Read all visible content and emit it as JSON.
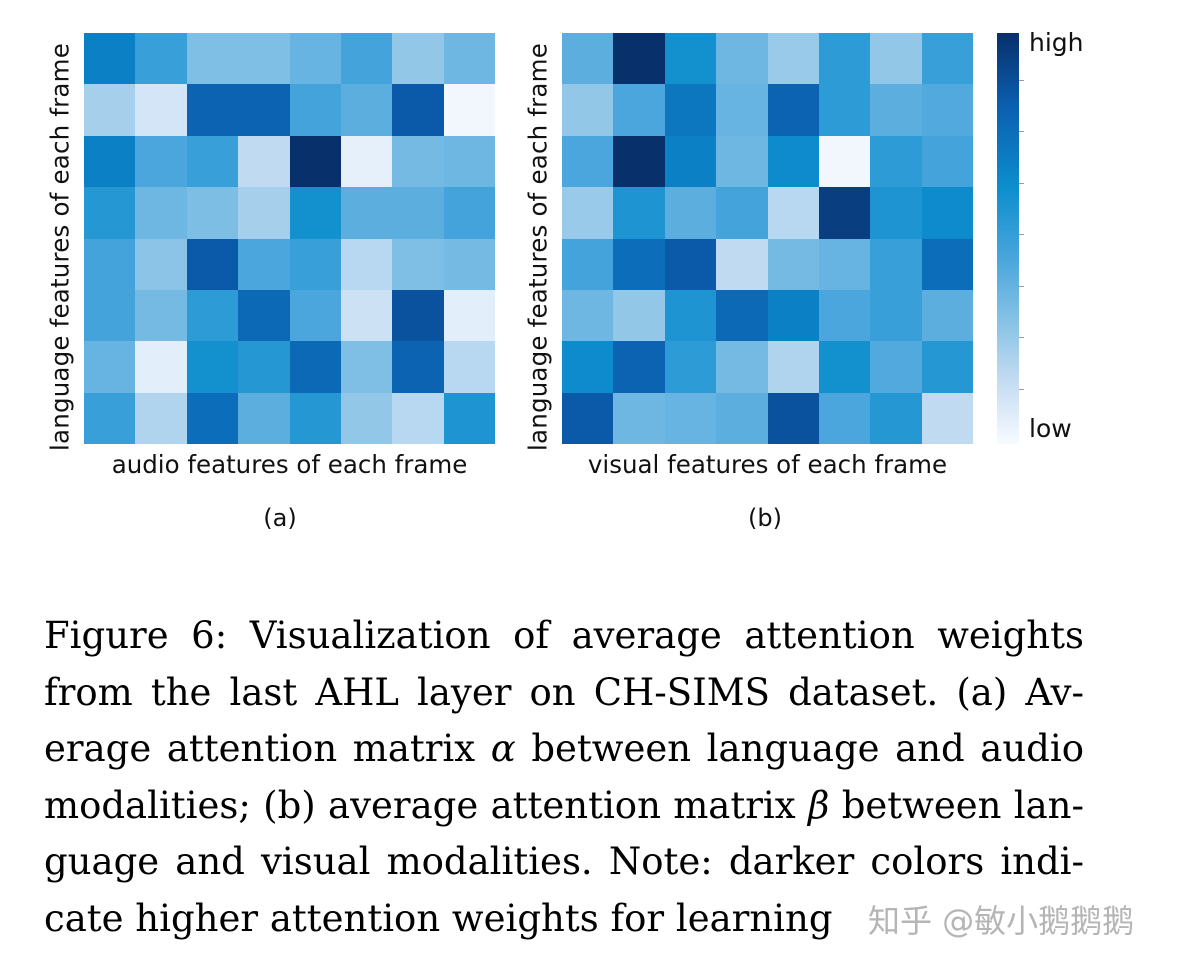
{
  "chart_data": [
    {
      "type": "heatmap",
      "panel_label": "(a)",
      "xlabel": "audio features of each frame",
      "ylabel": "language features of each frame",
      "rows": 8,
      "cols": 8,
      "values": [
        [
          0.72,
          0.55,
          0.35,
          0.35,
          0.42,
          0.52,
          0.3,
          0.4
        ],
        [
          0.25,
          0.12,
          0.82,
          0.82,
          0.52,
          0.45,
          0.85,
          0.02
        ],
        [
          0.72,
          0.5,
          0.55,
          0.18,
          1.0,
          0.06,
          0.38,
          0.4
        ],
        [
          0.6,
          0.4,
          0.36,
          0.25,
          0.65,
          0.45,
          0.45,
          0.52
        ],
        [
          0.52,
          0.32,
          0.85,
          0.5,
          0.55,
          0.2,
          0.35,
          0.38
        ],
        [
          0.52,
          0.38,
          0.58,
          0.8,
          0.5,
          0.14,
          0.88,
          0.07
        ],
        [
          0.42,
          0.07,
          0.65,
          0.6,
          0.8,
          0.35,
          0.82,
          0.2
        ],
        [
          0.55,
          0.22,
          0.78,
          0.45,
          0.6,
          0.3,
          0.2,
          0.62
        ]
      ]
    },
    {
      "type": "heatmap",
      "panel_label": "(b)",
      "xlabel": "visual features of each frame",
      "ylabel": "language features of each frame",
      "rows": 8,
      "cols": 8,
      "values": [
        [
          0.45,
          1.0,
          0.65,
          0.4,
          0.28,
          0.58,
          0.3,
          0.55
        ],
        [
          0.3,
          0.5,
          0.75,
          0.42,
          0.82,
          0.58,
          0.45,
          0.48
        ],
        [
          0.5,
          1.0,
          0.72,
          0.4,
          0.68,
          0.02,
          0.58,
          0.52
        ],
        [
          0.28,
          0.62,
          0.45,
          0.52,
          0.2,
          0.95,
          0.62,
          0.68
        ],
        [
          0.52,
          0.78,
          0.85,
          0.18,
          0.38,
          0.42,
          0.55,
          0.78
        ],
        [
          0.4,
          0.3,
          0.62,
          0.8,
          0.72,
          0.5,
          0.55,
          0.45
        ],
        [
          0.68,
          0.82,
          0.58,
          0.38,
          0.22,
          0.65,
          0.48,
          0.6
        ],
        [
          0.85,
          0.4,
          0.42,
          0.45,
          0.88,
          0.5,
          0.6,
          0.18
        ]
      ]
    }
  ],
  "colorbar": {
    "high_label": "high",
    "low_label": "low",
    "colors": [
      "#f7fbff",
      "#c5dcf2",
      "#86c2e6",
      "#4aa6dc",
      "#0d8fce",
      "#0b5fb0",
      "#08306b"
    ]
  },
  "caption": {
    "line1": "Figure 6:  Visualization of average attention weights",
    "line2": "from the last AHL layer on CH-SIMS dataset. (a) Av-",
    "line3_pre": "erage attention matrix ",
    "alpha": "α",
    "line3_post": " between language and audio",
    "line4_pre": "modalities; (b) average attention matrix ",
    "beta": "β",
    "line4_post": " between lan-",
    "line5": "guage and visual modalities. Note: darker colors indi-",
    "line6": "cate higher attention weights for learning"
  },
  "watermark": "知乎 @敏小鹅鹅鹅"
}
